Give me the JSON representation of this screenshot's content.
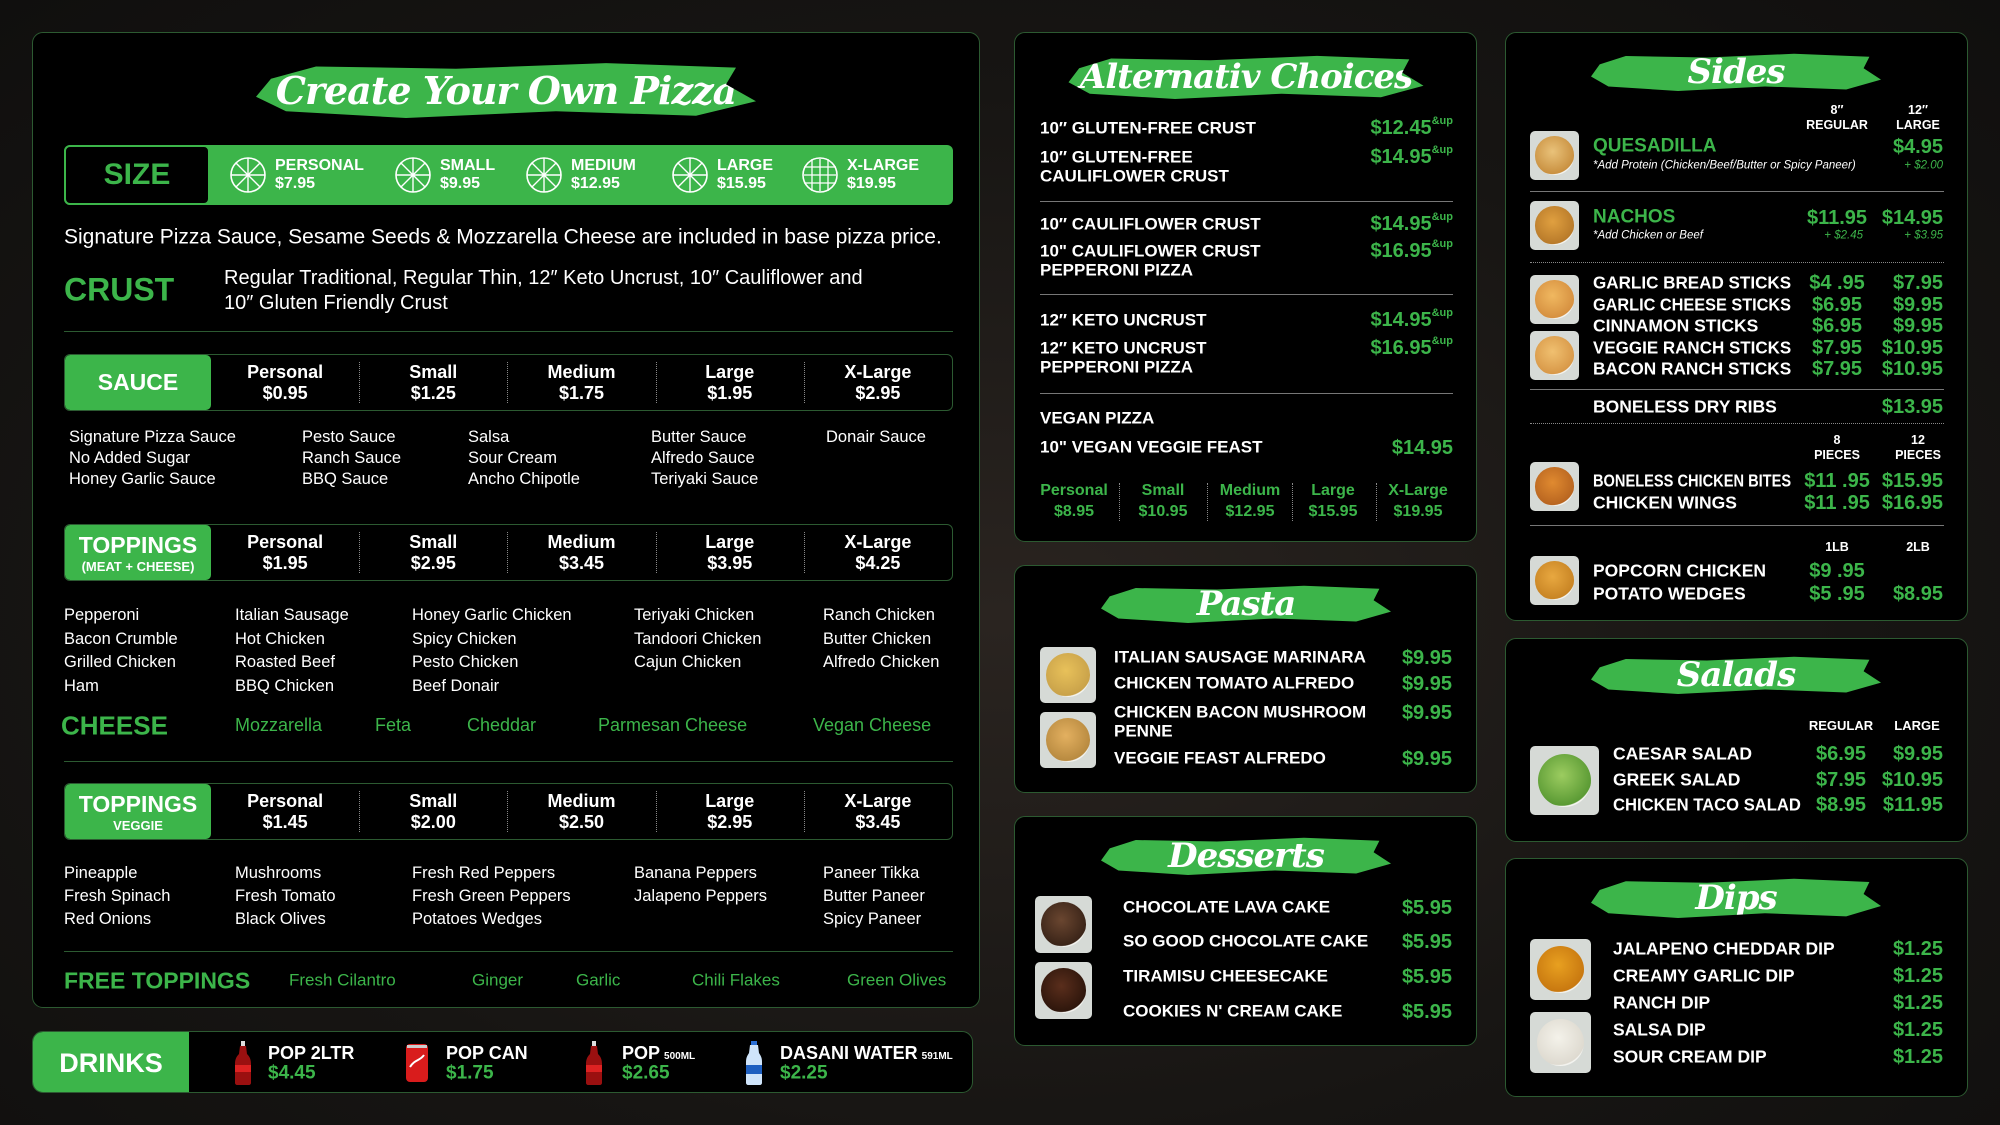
{
  "colors": {
    "accent": "#3cb54a",
    "panel": "#000000",
    "background": "#171513",
    "text": "#ffffff"
  },
  "pizza": {
    "title": "Create Your Own Pizza",
    "size": {
      "label": "SIZE",
      "options": [
        {
          "name": "PERSONAL",
          "price": "$7.95",
          "icon": "pizza-slices-icon"
        },
        {
          "name": "SMALL",
          "price": "$9.95",
          "icon": "pizza-slices-icon"
        },
        {
          "name": "MEDIUM",
          "price": "$12.95",
          "icon": "pizza-slices-icon"
        },
        {
          "name": "LARGE",
          "price": "$15.95",
          "icon": "pizza-slices-icon"
        },
        {
          "name": "X-LARGE",
          "price": "$19.95",
          "icon": "pizza-grid-icon"
        }
      ]
    },
    "base_note": "Signature Pizza Sauce, Sesame Seeds & Mozzarella Cheese are included in base pizza price.",
    "crust": {
      "label": "CRUST",
      "lines": [
        "Regular Traditional,  Regular Thin,  12″ Keto Uncrust, 10″ Cauliflower and",
        "10″ Gluten Friendly Crust"
      ]
    },
    "sauce": {
      "label": "SAUCE",
      "sublabel": "",
      "prices": [
        {
          "size": "Personal",
          "price": "$0.95"
        },
        {
          "size": "Small",
          "price": "$1.25"
        },
        {
          "size": "Medium",
          "price": "$1.75"
        },
        {
          "size": "Large",
          "price": "$1.95"
        },
        {
          "size": "X-Large",
          "price": "$2.95"
        }
      ],
      "columns": [
        [
          "Signature Pizza Sauce",
          "No Added Sugar",
          "Honey Garlic Sauce"
        ],
        [
          "Pesto Sauce",
          "Ranch Sauce",
          "BBQ Sauce"
        ],
        [
          "Salsa",
          "Sour Cream",
          "Ancho Chipotle"
        ],
        [
          "Butter Sauce",
          "Alfredo Sauce",
          "Teriyaki Sauce"
        ],
        [
          "Donair Sauce"
        ]
      ]
    },
    "toppings_meat": {
      "label": "TOPPINGS",
      "sublabel": "(MEAT + CHEESE)",
      "prices": [
        {
          "size": "Personal",
          "price": "$1.95"
        },
        {
          "size": "Small",
          "price": "$2.95"
        },
        {
          "size": "Medium",
          "price": "$3.45"
        },
        {
          "size": "Large",
          "price": "$3.95"
        },
        {
          "size": "X-Large",
          "price": "$4.25"
        }
      ],
      "columns": [
        [
          "Pepperoni",
          "Bacon Crumble",
          "Grilled Chicken",
          "Ham"
        ],
        [
          "Italian Sausage",
          "Hot Chicken",
          "Roasted Beef",
          "BBQ Chicken"
        ],
        [
          "Honey Garlic Chicken",
          "Spicy Chicken",
          "Pesto Chicken",
          "Beef Donair"
        ],
        [
          "Teriyaki Chicken",
          "Tandoori Chicken",
          "Cajun Chicken"
        ],
        [
          "Ranch Chicken",
          "Butter Chicken",
          "Alfredo Chicken"
        ]
      ]
    },
    "cheese": {
      "label": "CHEESE",
      "items": [
        "Mozzarella",
        "Feta",
        "Cheddar",
        "Parmesan Cheese",
        "Vegan Cheese"
      ]
    },
    "toppings_veggie": {
      "label": "TOPPINGS",
      "sublabel": "VEGGIE",
      "prices": [
        {
          "size": "Personal",
          "price": "$1.45"
        },
        {
          "size": "Small",
          "price": "$2.00"
        },
        {
          "size": "Medium",
          "price": "$2.50"
        },
        {
          "size": "Large",
          "price": "$2.95"
        },
        {
          "size": "X-Large",
          "price": "$3.45"
        }
      ],
      "columns": [
        [
          "Pineapple",
          "Fresh Spinach",
          "Red Onions"
        ],
        [
          "Mushrooms",
          "Fresh Tomato",
          "Black Olives"
        ],
        [
          "Fresh Red Peppers",
          "Fresh Green Peppers",
          "Potatoes Wedges"
        ],
        [
          "Banana Peppers",
          "Jalapeno Peppers"
        ],
        [
          "Paneer Tikka",
          "Butter Paneer",
          "Spicy Paneer"
        ]
      ]
    },
    "free_toppings": {
      "label": "FREE TOPPINGS",
      "items": [
        "Fresh Cilantro",
        "Ginger",
        "Garlic",
        "Chili Flakes",
        "Green Olives"
      ]
    }
  },
  "drinks": {
    "label": "DRINKS",
    "items": [
      {
        "name": "POP 2LTR",
        "unit": "",
        "price": "$4.45",
        "icon": "soda-bottle-icon"
      },
      {
        "name": "POP CAN",
        "unit": "",
        "price": "$1.75",
        "icon": "soda-can-icon"
      },
      {
        "name": "POP",
        "unit": "500ML",
        "price": "$2.65",
        "icon": "soda-bottle-icon"
      },
      {
        "name": "DASANI WATER",
        "unit": "591ML",
        "price": "$2.25",
        "icon": "water-bottle-icon"
      }
    ]
  },
  "alternative": {
    "title": "Alternativ Choices",
    "items": [
      {
        "lines": [
          "10″ GLUTEN-FREE CRUST"
        ],
        "price": "$12.45",
        "suffix": "&up"
      },
      {
        "lines": [
          "10″ GLUTEN-FREE",
          "CAULIFLOWER CRUST"
        ],
        "price": "$14.95",
        "suffix": "&up"
      },
      {
        "lines": [
          "10″ CAULIFLOWER CRUST"
        ],
        "price": "$14.95",
        "suffix": "&up"
      },
      {
        "lines": [
          "10\" CAULIFLOWER CRUST",
          "PEPPERONI PIZZA"
        ],
        "price": "$16.95",
        "suffix": "&up"
      },
      {
        "lines": [
          "12″ KETO UNCRUST"
        ],
        "price": "$14.95",
        "suffix": "&up"
      },
      {
        "lines": [
          "12″ KETO UNCRUST",
          "PEPPERONI PIZZA"
        ],
        "price": "$16.95",
        "suffix": "&up"
      }
    ],
    "vegan": {
      "heading": "VEGAN PIZZA",
      "item": "10\" VEGAN VEGGIE FEAST",
      "price": "$14.95",
      "sizes": [
        {
          "size": "Personal",
          "price": "$8.95"
        },
        {
          "size": "Small",
          "price": "$10.95"
        },
        {
          "size": "Medium",
          "price": "$12.95"
        },
        {
          "size": "Large",
          "price": "$15.95"
        },
        {
          "size": "X-Large",
          "price": "$19.95"
        }
      ]
    }
  },
  "pasta": {
    "title": "Pasta",
    "items": [
      {
        "lines": [
          "ITALIAN SAUSAGE MARINARA"
        ],
        "price": "$9.95"
      },
      {
        "lines": [
          "CHICKEN TOMATO ALFREDO"
        ],
        "price": "$9.95"
      },
      {
        "lines": [
          "CHICKEN BACON MUSHROOM",
          "PENNE"
        ],
        "price": "$9.95"
      },
      {
        "lines": [
          "VEGGIE FEAST ALFREDO"
        ],
        "price": "$9.95"
      }
    ]
  },
  "desserts": {
    "title": "Desserts",
    "items": [
      {
        "lines": [
          "CHOCOLATE LAVA CAKE"
        ],
        "price": "$5.95"
      },
      {
        "lines": [
          "SO GOOD CHOCOLATE CAKE"
        ],
        "price": "$5.95"
      },
      {
        "lines": [
          "TIRAMISU CHEESECAKE"
        ],
        "price": "$5.95"
      },
      {
        "lines": [
          "COOKIES N' CREAM CAKE"
        ],
        "price": "$5.95"
      }
    ]
  },
  "sides": {
    "title": "Sides",
    "sections": [
      {
        "columns": [
          [
            "8″",
            "REGULAR"
          ],
          [
            "12″",
            "LARGE"
          ]
        ],
        "rows": [
          {
            "name": "QUESADILLA",
            "highlight": true,
            "note": "*Add Protein (Chicken/Beef/Butter or Spicy Paneer)",
            "prices": [
              "",
              "$4.95"
            ],
            "addons": [
              "",
              "+ $2.00"
            ]
          }
        ]
      },
      {
        "columns": [],
        "rows": [
          {
            "name": "NACHOS",
            "highlight": true,
            "note": "*Add Chicken or Beef",
            "prices": [
              "$11.95",
              "$14.95"
            ],
            "addons": [
              "+ $2.45",
              "+ $3.95"
            ]
          }
        ]
      },
      {
        "columns": [],
        "rows": [
          {
            "name": "GARLIC BREAD STICKS",
            "prices": [
              "$4 .95",
              "$7.95"
            ]
          },
          {
            "name": "GARLIC CHEESE STICKS",
            "prices": [
              "$6.95",
              "$9.95"
            ]
          },
          {
            "name": "CINNAMON STICKS",
            "prices": [
              "$6.95",
              "$9.95"
            ]
          },
          {
            "name": "VEGGIE RANCH STICKS",
            "prices": [
              "$7.95",
              "$10.95"
            ]
          },
          {
            "name": "BACON RANCH STICKS",
            "prices": [
              "$7.95",
              "$10.95"
            ]
          }
        ]
      },
      {
        "columns": [],
        "rows": [
          {
            "name": "BONELESS DRY RIBS",
            "prices": [
              "",
              "$13.95"
            ]
          }
        ]
      },
      {
        "columns": [
          [
            "8",
            "PIECES"
          ],
          [
            "12",
            "PIECES"
          ]
        ],
        "rows": [
          {
            "name": "BONELESS CHICKEN BITES",
            "prices": [
              "$11 .95",
              "$15.95"
            ]
          },
          {
            "name": "CHICKEN WINGS",
            "prices": [
              "$11 .95",
              "$16.95"
            ]
          }
        ]
      },
      {
        "columns": [
          [
            "1LB"
          ],
          [
            "2LB"
          ]
        ],
        "rows": [
          {
            "name": "POPCORN CHICKEN",
            "prices": [
              "$9 .95",
              ""
            ]
          },
          {
            "name": "POTATO WEDGES",
            "prices": [
              "$5 .95",
              "$8.95"
            ]
          }
        ]
      }
    ]
  },
  "salads": {
    "title": "Salads",
    "columns": [
      "REGULAR",
      "LARGE"
    ],
    "items": [
      {
        "name": "CAESAR SALAD",
        "prices": [
          "$6.95",
          "$9.95"
        ]
      },
      {
        "name": "GREEK SALAD",
        "prices": [
          "$7.95",
          "$10.95"
        ]
      },
      {
        "name": "CHICKEN TACO SALAD",
        "prices": [
          "$8.95",
          "$11.95"
        ]
      }
    ]
  },
  "dips": {
    "title": "Dips",
    "items": [
      {
        "name": "JALAPENO CHEDDAR DIP",
        "price": "$1.25"
      },
      {
        "name": "CREAMY GARLIC DIP",
        "price": "$1.25"
      },
      {
        "name": "RANCH DIP",
        "price": "$1.25"
      },
      {
        "name": "SALSA DIP",
        "price": "$1.25"
      },
      {
        "name": "SOUR CREAM DIP",
        "price": "$1.25"
      }
    ]
  }
}
